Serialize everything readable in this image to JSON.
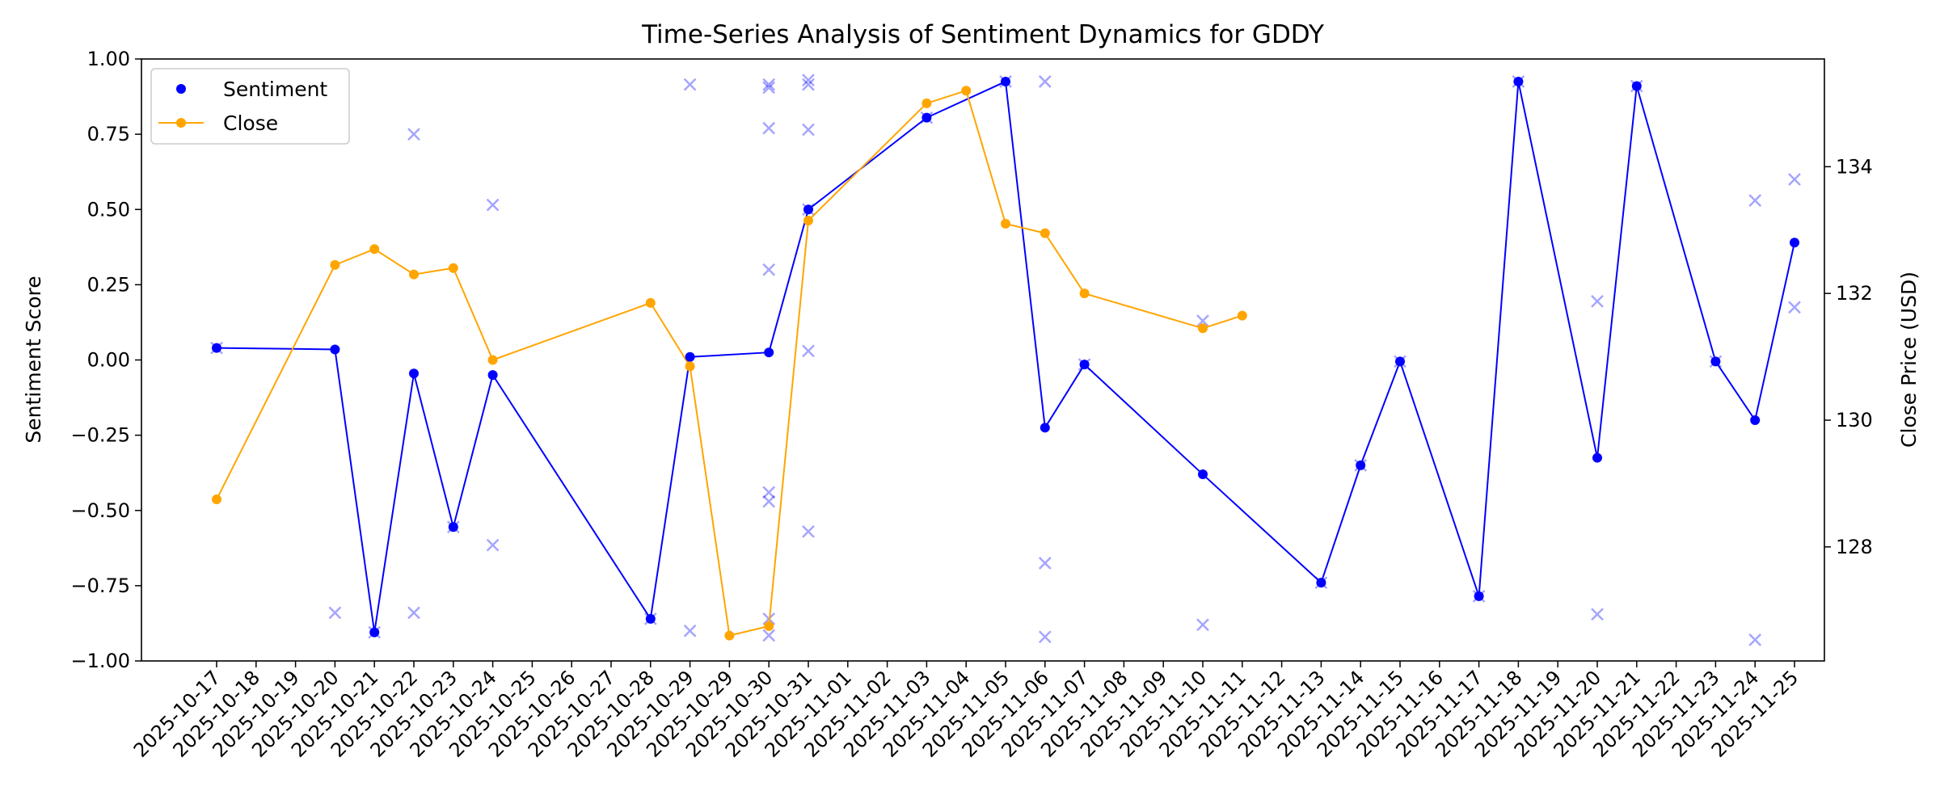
{
  "chart_data": {
    "type": "line",
    "title": "Time-Series Analysis of Sentiment Dynamics for GDDY",
    "ylabel": "Sentiment Score",
    "y2label": "Close Price (USD)",
    "xlabel": "",
    "ylim": [
      -1.0,
      1.0
    ],
    "y2lim": [
      126.2,
      135.7
    ],
    "yticks": [
      -1.0,
      -0.75,
      -0.5,
      -0.25,
      0.0,
      0.25,
      0.5,
      0.75,
      1.0
    ],
    "yticklabels": [
      "−1.00",
      "−0.75",
      "−0.50",
      "−0.25",
      "0.00",
      "0.25",
      "0.50",
      "0.75",
      "1.00"
    ],
    "y2ticks": [
      128,
      130,
      132,
      134
    ],
    "y2ticklabels": [
      "128",
      "130",
      "132",
      "134"
    ],
    "grid": false,
    "legend_position": "top-left",
    "x_categories": [
      "2025-10-17",
      "2025-10-18",
      "2025-10-19",
      "2025-10-20",
      "2025-10-21",
      "2025-10-22",
      "2025-10-23",
      "2025-10-24",
      "2025-10-25",
      "2025-10-26",
      "2025-10-27",
      "2025-10-28",
      "2025-10-29",
      "2025-10-29",
      "2025-10-30",
      "2025-10-31",
      "2025-11-01",
      "2025-11-02",
      "2025-11-03",
      "2025-11-04",
      "2025-11-05",
      "2025-11-06",
      "2025-11-07",
      "2025-11-08",
      "2025-11-09",
      "2025-11-10",
      "2025-11-11",
      "2025-11-12",
      "2025-11-13",
      "2025-11-14",
      "2025-11-15",
      "2025-11-16",
      "2025-11-17",
      "2025-11-18",
      "2025-11-19",
      "2025-11-20",
      "2025-11-21",
      "2025-11-22",
      "2025-11-23",
      "2025-11-24",
      "2025-11-25"
    ],
    "series": [
      {
        "name": "Sentiment",
        "color": "#0000ff",
        "marker": "circle",
        "points": [
          {
            "x": "2025-10-17",
            "y": 0.04
          },
          {
            "x": "2025-10-20",
            "y": 0.035
          },
          {
            "x": "2025-10-21",
            "y": -0.905
          },
          {
            "x": "2025-10-22",
            "y": -0.045
          },
          {
            "x": "2025-10-23",
            "y": -0.555
          },
          {
            "x": "2025-10-24",
            "y": -0.05
          },
          {
            "x": "2025-10-28",
            "y": -0.86
          },
          {
            "x": "2025-10-29",
            "y": 0.01
          },
          {
            "x": "2025-10-30",
            "y": 0.025
          },
          {
            "x": "2025-10-31",
            "y": 0.5
          },
          {
            "x": "2025-11-03",
            "y": 0.805
          },
          {
            "x": "2025-11-05",
            "y": 0.925
          },
          {
            "x": "2025-11-06",
            "y": -0.225
          },
          {
            "x": "2025-11-07",
            "y": -0.015
          },
          {
            "x": "2025-11-10",
            "y": -0.38
          },
          {
            "x": "2025-11-13",
            "y": -0.74
          },
          {
            "x": "2025-11-14",
            "y": -0.35
          },
          {
            "x": "2025-11-15",
            "y": -0.005
          },
          {
            "x": "2025-11-17",
            "y": -0.785
          },
          {
            "x": "2025-11-18",
            "y": 0.925
          },
          {
            "x": "2025-11-20",
            "y": -0.325
          },
          {
            "x": "2025-11-21",
            "y": 0.91
          },
          {
            "x": "2025-11-23",
            "y": -0.005
          },
          {
            "x": "2025-11-24",
            "y": -0.2
          },
          {
            "x": "2025-11-25",
            "y": 0.39
          }
        ]
      },
      {
        "name": "Close",
        "color": "#ffa500",
        "marker": "circle",
        "axis": "right",
        "points": [
          {
            "x": "2025-10-17",
            "y": 128.75
          },
          {
            "x": "2025-10-20",
            "y": 132.45
          },
          {
            "x": "2025-10-21",
            "y": 132.7
          },
          {
            "x": "2025-10-22",
            "y": 132.3
          },
          {
            "x": "2025-10-23",
            "y": 132.4
          },
          {
            "x": "2025-10-24",
            "y": 130.95
          },
          {
            "x": "2025-10-28",
            "y": 131.85
          },
          {
            "x": "2025-10-29",
            "y": 130.85
          },
          {
            "x": "2025-10-29",
            "y": 126.6
          },
          {
            "x": "2025-10-30",
            "y": 126.75
          },
          {
            "x": "2025-10-31",
            "y": 133.15
          },
          {
            "x": "2025-11-03",
            "y": 135.0
          },
          {
            "x": "2025-11-04",
            "y": 135.2
          },
          {
            "x": "2025-11-05",
            "y": 133.1
          },
          {
            "x": "2025-11-06",
            "y": 132.95
          },
          {
            "x": "2025-11-07",
            "y": 132.0
          },
          {
            "x": "2025-11-10",
            "y": 131.45
          },
          {
            "x": "2025-11-11",
            "y": 131.65
          }
        ]
      }
    ],
    "raw_scores": {
      "color": "#0000ff",
      "opacity": 0.35,
      "marker": "x",
      "points": [
        {
          "x": "2025-10-17",
          "y": 0.04
        },
        {
          "x": "2025-10-20",
          "y": -0.84
        },
        {
          "x": "2025-10-21",
          "y": -0.905
        },
        {
          "x": "2025-10-22",
          "y": 0.75
        },
        {
          "x": "2025-10-22",
          "y": -0.84
        },
        {
          "x": "2025-10-23",
          "y": -0.555
        },
        {
          "x": "2025-10-24",
          "y": 0.515
        },
        {
          "x": "2025-10-24",
          "y": -0.615
        },
        {
          "x": "2025-10-28",
          "y": -0.86
        },
        {
          "x": "2025-10-29",
          "y": 0.915
        },
        {
          "x": "2025-10-29",
          "y": -0.9
        },
        {
          "x": "2025-10-30",
          "y": 0.915
        },
        {
          "x": "2025-10-30",
          "y": 0.905
        },
        {
          "x": "2025-10-30",
          "y": 0.77
        },
        {
          "x": "2025-10-30",
          "y": 0.3
        },
        {
          "x": "2025-10-30",
          "y": -0.44
        },
        {
          "x": "2025-10-30",
          "y": -0.47
        },
        {
          "x": "2025-10-30",
          "y": -0.86
        },
        {
          "x": "2025-10-30",
          "y": -0.915
        },
        {
          "x": "2025-10-31",
          "y": 0.93
        },
        {
          "x": "2025-10-31",
          "y": 0.915
        },
        {
          "x": "2025-10-31",
          "y": 0.765
        },
        {
          "x": "2025-10-31",
          "y": 0.5
        },
        {
          "x": "2025-10-31",
          "y": 0.03
        },
        {
          "x": "2025-10-31",
          "y": -0.57
        },
        {
          "x": "2025-11-03",
          "y": 0.805
        },
        {
          "x": "2025-11-05",
          "y": 0.925
        },
        {
          "x": "2025-11-06",
          "y": 0.925
        },
        {
          "x": "2025-11-06",
          "y": -0.675
        },
        {
          "x": "2025-11-06",
          "y": -0.92
        },
        {
          "x": "2025-11-07",
          "y": -0.015
        },
        {
          "x": "2025-11-10",
          "y": 0.13
        },
        {
          "x": "2025-11-10",
          "y": -0.88
        },
        {
          "x": "2025-11-13",
          "y": -0.74
        },
        {
          "x": "2025-11-14",
          "y": -0.35
        },
        {
          "x": "2025-11-15",
          "y": -0.005
        },
        {
          "x": "2025-11-17",
          "y": -0.785
        },
        {
          "x": "2025-11-18",
          "y": 0.925
        },
        {
          "x": "2025-11-20",
          "y": 0.195
        },
        {
          "x": "2025-11-20",
          "y": -0.845
        },
        {
          "x": "2025-11-21",
          "y": 0.91
        },
        {
          "x": "2025-11-23",
          "y": -0.005
        },
        {
          "x": "2025-11-24",
          "y": 0.53
        },
        {
          "x": "2025-11-24",
          "y": -0.93
        },
        {
          "x": "2025-11-25",
          "y": 0.6
        },
        {
          "x": "2025-11-25",
          "y": 0.175
        }
      ]
    }
  }
}
